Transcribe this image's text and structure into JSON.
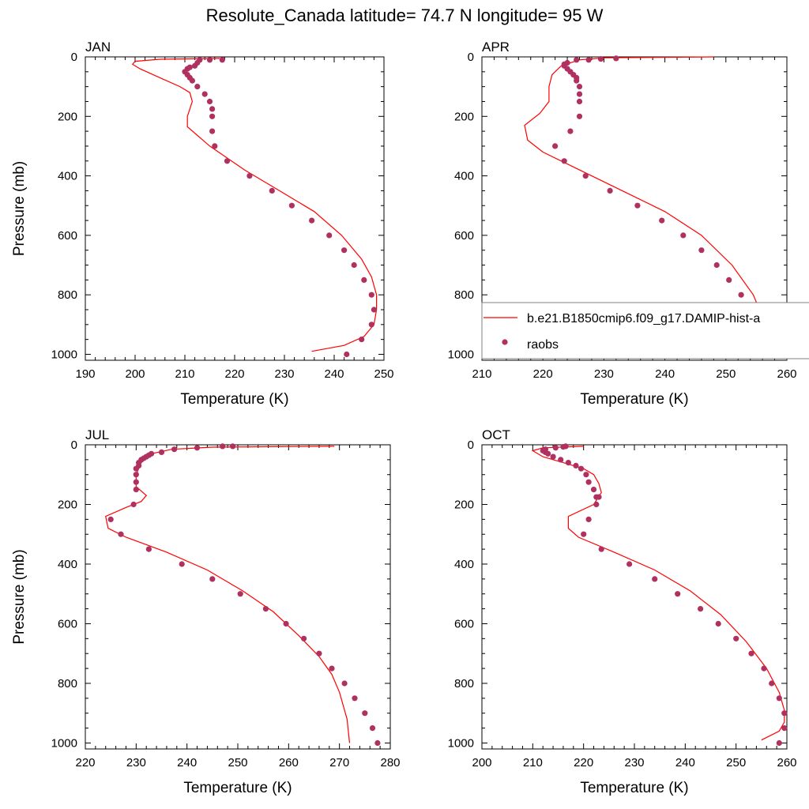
{
  "title": "Resolute_Canada  latitude= 74.7 N longitude= 95 W",
  "colors": {
    "model": "#ff0000",
    "obs": "#b03060",
    "axis": "#000000"
  },
  "legend": {
    "location": "APR panel, lower right",
    "entries": [
      {
        "label": "b.e21.B1850cmip6.f09_g17.DAMIP-hist-a",
        "style": "line",
        "color": "#ff0000"
      },
      {
        "label": "raobs",
        "style": "dot",
        "color": "#b03060"
      }
    ]
  },
  "chart_data": [
    {
      "type": "line",
      "panel_title": "JAN",
      "xlabel": "Temperature (K)",
      "ylabel": "Pressure (mb)",
      "xlim": [
        190,
        250
      ],
      "ylim": [
        0,
        1020
      ],
      "y_inverted": true,
      "xticks": [
        190,
        200,
        210,
        220,
        230,
        240,
        250
      ],
      "yticks": [
        0,
        200,
        400,
        600,
        800,
        1000
      ],
      "series": [
        {
          "name": "b.e21.B1850cmip6.f09_g17.DAMIP-hist-a",
          "style": "line",
          "x": [
            217,
            205,
            200,
            199.5,
            201,
            205,
            209,
            211,
            211.5,
            210.5,
            210.5,
            215,
            222,
            229,
            236,
            241.5,
            245.5,
            247.5,
            248.5,
            248.5,
            248,
            246,
            242,
            235.5
          ],
          "y": [
            5,
            8,
            15,
            25,
            40,
            70,
            100,
            120,
            150,
            200,
            235,
            300,
            380,
            450,
            520,
            600,
            680,
            740,
            800,
            850,
            900,
            940,
            970,
            990
          ]
        },
        {
          "name": "raobs",
          "style": "markers",
          "x": [
            217.5,
            215,
            213,
            212.5,
            212,
            211,
            210.5,
            210,
            210.5,
            211,
            211.5,
            212.5,
            214,
            215,
            215.5,
            215.5,
            215.5,
            216,
            218.5,
            223,
            227.5,
            231.5,
            235.5,
            239,
            242,
            244,
            246,
            247.5,
            248,
            247.5,
            245.5,
            242.5
          ],
          "y": [
            10,
            10,
            10,
            20,
            30,
            35,
            40,
            50,
            60,
            70,
            80,
            100,
            125,
            150,
            175,
            200,
            250,
            300,
            350,
            400,
            450,
            500,
            550,
            600,
            650,
            700,
            750,
            800,
            850,
            900,
            950,
            1000
          ]
        }
      ]
    },
    {
      "type": "line",
      "panel_title": "APR",
      "xlabel": "Temperature (K)",
      "ylabel": "",
      "xlim": [
        210,
        260
      ],
      "ylim": [
        0,
        1020
      ],
      "y_inverted": true,
      "xticks": [
        210,
        220,
        230,
        240,
        250,
        260
      ],
      "yticks": [
        0,
        200,
        400,
        600,
        800,
        1000
      ],
      "series": [
        {
          "name": "b.e21.B1850cmip6.f09_g17.DAMIP-hist-a",
          "style": "line",
          "x": [
            248,
            230,
            226,
            223,
            221.5,
            221,
            221,
            219.5,
            217,
            217.5,
            220,
            226,
            233,
            240,
            246,
            251,
            254.5,
            256.5,
            256.5,
            254,
            250
          ],
          "y": [
            0,
            3,
            10,
            30,
            60,
            100,
            150,
            190,
            230,
            280,
            320,
            380,
            450,
            520,
            600,
            700,
            800,
            900,
            950,
            980,
            1000
          ]
        },
        {
          "name": "raobs",
          "style": "markers",
          "x": [
            232,
            229.5,
            227.5,
            225.5,
            224,
            223.5,
            223.5,
            224,
            224.5,
            225,
            225.5,
            225.5,
            226,
            226,
            226,
            226,
            224.5,
            222,
            223.5,
            227,
            231,
            235.5,
            239.5,
            243,
            246,
            248.5,
            250.5,
            252.5,
            253.5,
            254,
            253.5,
            253,
            251
          ],
          "y": [
            5,
            7,
            10,
            10,
            20,
            25,
            30,
            40,
            50,
            60,
            70,
            80,
            100,
            125,
            150,
            200,
            250,
            300,
            350,
            400,
            450,
            500,
            550,
            600,
            650,
            700,
            750,
            800,
            850,
            900,
            950,
            1000,
            1000
          ]
        }
      ]
    },
    {
      "type": "line",
      "panel_title": "JUL",
      "xlabel": "Temperature (K)",
      "ylabel": "Pressure (mb)",
      "xlim": [
        220,
        280
      ],
      "ylim": [
        0,
        1020
      ],
      "y_inverted": true,
      "xticks": [
        220,
        230,
        240,
        250,
        260,
        270,
        280
      ],
      "yticks": [
        0,
        200,
        400,
        600,
        800,
        1000
      ],
      "series": [
        {
          "name": "b.e21.B1850cmip6.f09_g17.DAMIP-hist-a",
          "style": "line",
          "x": [
            269,
            245,
            237,
            233,
            231,
            230,
            230,
            232,
            231,
            228,
            224,
            224.5,
            228,
            236,
            244,
            251,
            257,
            262,
            266,
            268.5,
            270,
            271.5,
            272
          ],
          "y": [
            5,
            8,
            15,
            30,
            60,
            100,
            140,
            170,
            190,
            210,
            240,
            280,
            310,
            360,
            420,
            490,
            560,
            640,
            710,
            770,
            830,
            920,
            1000
          ]
        },
        {
          "name": "raobs",
          "style": "markers",
          "x": [
            249,
            247,
            242,
            237.5,
            235,
            233,
            232.5,
            232,
            231.5,
            231,
            230.5,
            230.5,
            230,
            230,
            230,
            230,
            229.5,
            225,
            227,
            232.5,
            239,
            245,
            250.5,
            255.5,
            259.5,
            263,
            266,
            268.5,
            271,
            273,
            275,
            276.5,
            277.5
          ],
          "y": [
            5,
            5,
            10,
            15,
            25,
            30,
            35,
            40,
            45,
            50,
            60,
            70,
            80,
            100,
            125,
            150,
            200,
            250,
            300,
            350,
            400,
            450,
            500,
            550,
            600,
            650,
            700,
            750,
            800,
            850,
            900,
            950,
            1000
          ]
        }
      ]
    },
    {
      "type": "line",
      "panel_title": "OCT",
      "xlabel": "Temperature (K)",
      "ylabel": "",
      "xlim": [
        200,
        260
      ],
      "ylim": [
        0,
        1020
      ],
      "y_inverted": true,
      "xticks": [
        200,
        210,
        220,
        230,
        240,
        250,
        260
      ],
      "yticks": [
        0,
        200,
        400,
        600,
        800,
        1000
      ],
      "series": [
        {
          "name": "b.e21.B1850cmip6.f09_g17.DAMIP-hist-a",
          "style": "line",
          "x": [
            220,
            212,
            210,
            212,
            216,
            220,
            222,
            223,
            223.5,
            222,
            217,
            217,
            219,
            226,
            234,
            241,
            247,
            252,
            256,
            258.5,
            259.5,
            259.5,
            258.5,
            255
          ],
          "y": [
            5,
            10,
            20,
            40,
            60,
            80,
            100,
            130,
            160,
            200,
            240,
            280,
            310,
            360,
            420,
            490,
            570,
            660,
            750,
            830,
            890,
            930,
            960,
            990
          ]
        },
        {
          "name": "raobs",
          "style": "markers",
          "x": [
            216.5,
            216,
            214.5,
            212.5,
            212,
            212.5,
            213,
            214,
            215.5,
            217,
            218.5,
            219.5,
            220.5,
            221,
            222,
            222.5,
            223,
            222.5,
            221,
            220,
            223.5,
            229,
            234,
            238.5,
            243,
            246.5,
            250,
            253,
            255.5,
            257,
            258.5,
            259.5,
            259.5,
            258.5
          ],
          "y": [
            5,
            7,
            10,
            15,
            20,
            25,
            30,
            40,
            50,
            60,
            70,
            80,
            100,
            125,
            150,
            175,
            175,
            200,
            250,
            300,
            350,
            400,
            450,
            500,
            550,
            600,
            650,
            700,
            750,
            800,
            850,
            900,
            950,
            1000
          ]
        }
      ]
    }
  ]
}
